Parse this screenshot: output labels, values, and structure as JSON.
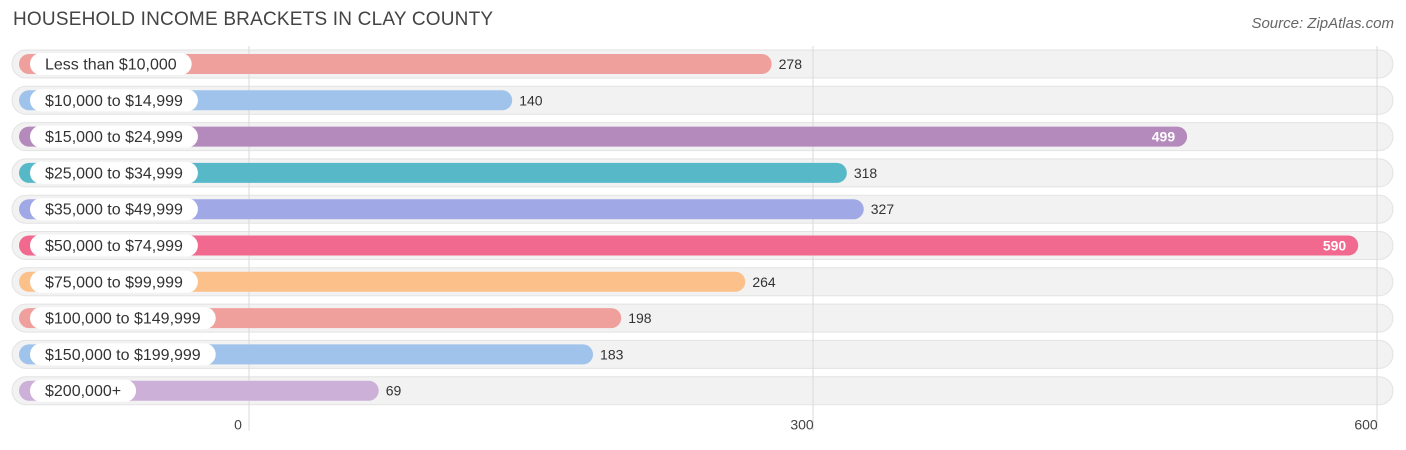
{
  "header": {
    "title": "HOUSEHOLD INCOME BRACKETS IN CLAY COUNTY",
    "source": "Source: ZipAtlas.com"
  },
  "chart_data": {
    "type": "bar",
    "orientation": "horizontal",
    "title": "HOUSEHOLD INCOME BRACKETS IN CLAY COUNTY",
    "xlabel": "",
    "ylabel": "",
    "xlim": [
      0,
      600
    ],
    "xticks": [
      0,
      300,
      600
    ],
    "xtick_labels": [
      "0",
      "300",
      "600"
    ],
    "grid": true,
    "categories": [
      "Less than $10,000",
      "$10,000 to $14,999",
      "$15,000 to $24,999",
      "$25,000 to $34,999",
      "$35,000 to $49,999",
      "$50,000 to $74,999",
      "$75,000 to $99,999",
      "$100,000 to $149,999",
      "$150,000 to $199,999",
      "$200,000+"
    ],
    "values": [
      278,
      140,
      499,
      318,
      327,
      590,
      264,
      198,
      183,
      69
    ],
    "value_labels": [
      "278",
      "140",
      "499",
      "318",
      "327",
      "590",
      "264",
      "198",
      "183",
      "69"
    ],
    "colors": [
      "#f0a09c",
      "#9fc3ea",
      "#b48abc",
      "#57b9c8",
      "#a0a8e6",
      "#f2698f",
      "#fcc08a",
      "#f0a09c",
      "#9fc3ea",
      "#cdb0d8"
    ]
  }
}
